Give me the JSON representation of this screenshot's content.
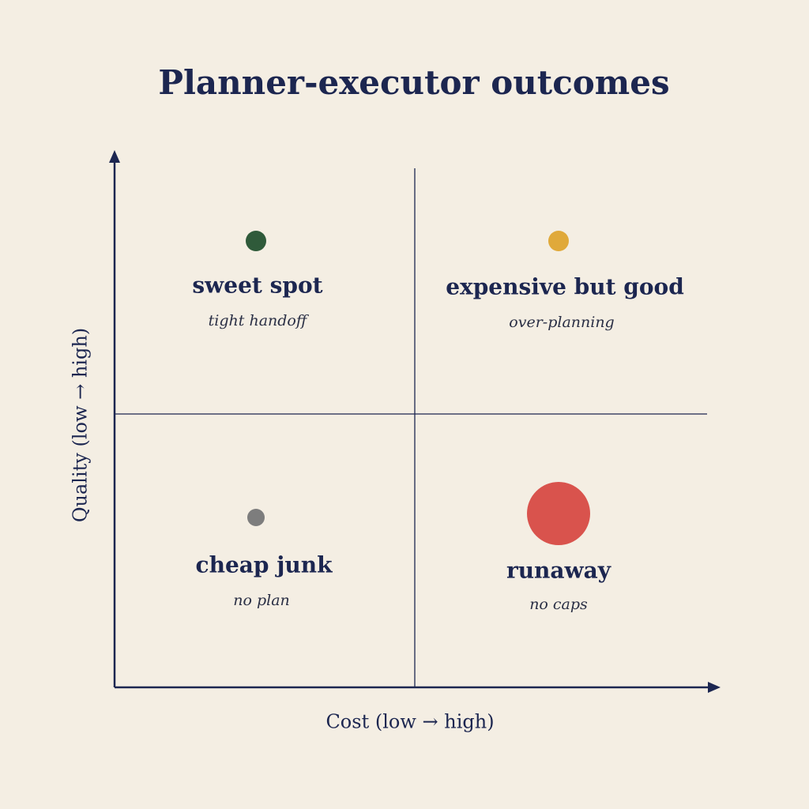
{
  "title": "Planner-executor outcomes",
  "x_axis_label": "Cost (low → high)",
  "y_axis_label": "Quality (low → high)",
  "quadrants": [
    {
      "label": "sweet spot",
      "sublabel": "tight handoff",
      "color": "#2f5a3a"
    },
    {
      "label": "expensive but good",
      "sublabel": "over-planning",
      "color": "#e0a93a"
    },
    {
      "label": "cheap junk",
      "sublabel": "no plan",
      "color": "#7d7d7d"
    },
    {
      "label": "runaway",
      "sublabel": "no caps",
      "color": "#d9534d"
    }
  ]
}
